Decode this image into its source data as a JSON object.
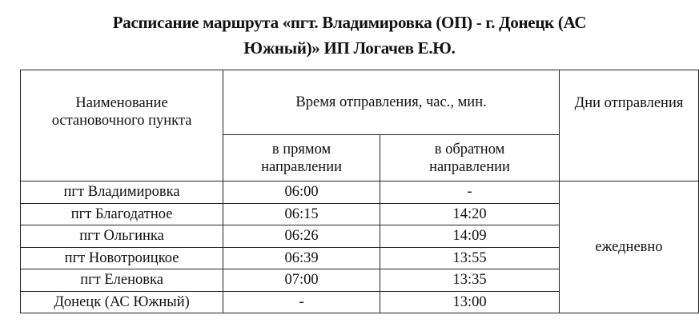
{
  "title": "Расписание маршрута «пгт. Владимировка (ОП) - г. Донецк (АС Южный)» ИП Логачев Е.Ю.",
  "title_line1": "Расписание маршрута «пгт. Владимировка (ОП) - г. Донецк (АС",
  "title_line2": "Южный)» ИП Логачев Е.Ю.",
  "headers": {
    "stop": "Наименование остановочного пункта",
    "time": "Время отправления, час., мин.",
    "forward": "в прямом направлении",
    "backward": "в обратном направлении",
    "days": "Дни отправления"
  },
  "rows": [
    {
      "stop": "пгт Владимировка",
      "forward": "06:00",
      "backward": "-"
    },
    {
      "stop": "пгт Благодатное",
      "forward": "06:15",
      "backward": "14:20"
    },
    {
      "stop": "пгт Ольгинка",
      "forward": "06:26",
      "backward": "14:09"
    },
    {
      "stop": "пгт Новотроицкое",
      "forward": "06:39",
      "backward": "13:55"
    },
    {
      "stop": "пгт Еленовка",
      "forward": "07:00",
      "backward": "13:35"
    },
    {
      "stop": "Донецк (АС Южный)",
      "forward": "-",
      "backward": "13:00"
    }
  ],
  "days": "ежедневно"
}
